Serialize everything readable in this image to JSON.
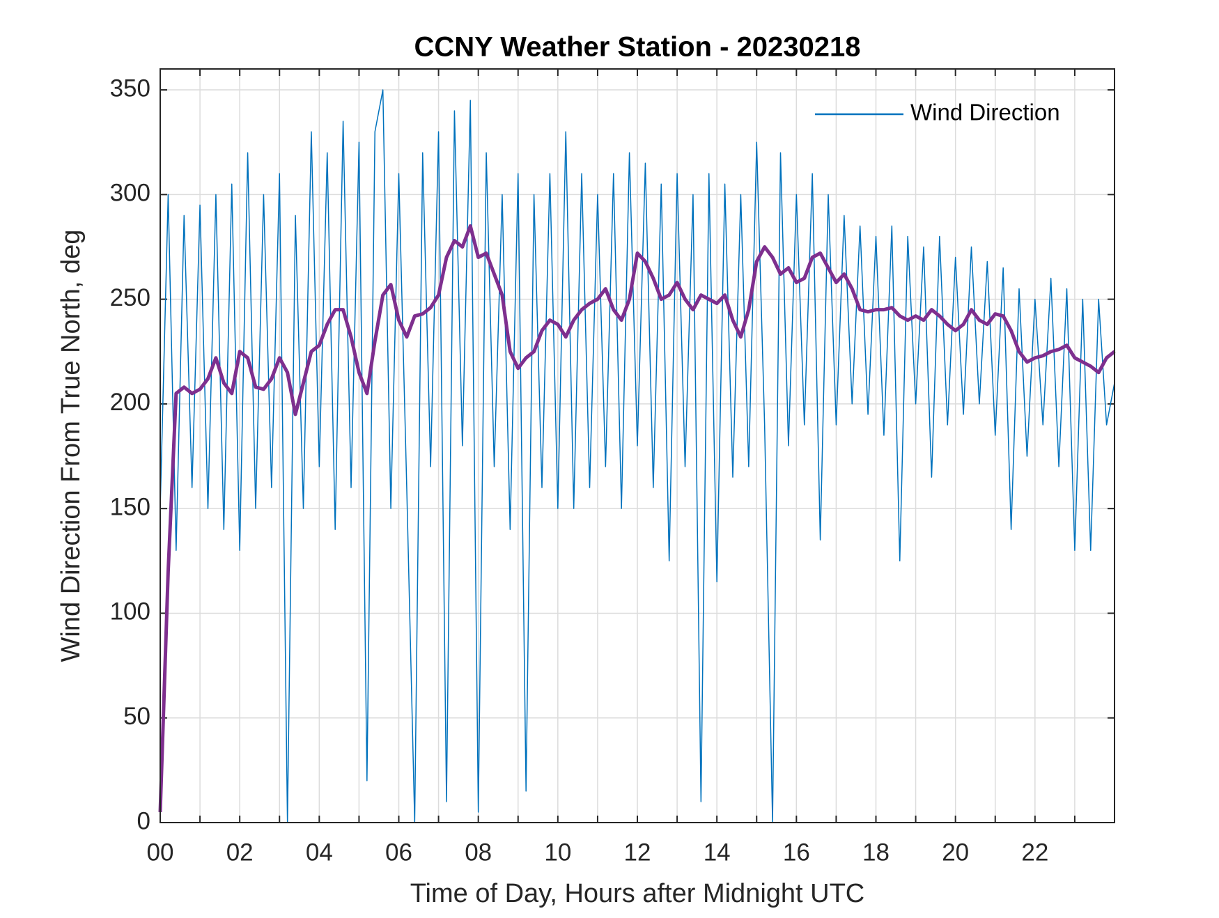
{
  "chart_data": {
    "type": "line",
    "title": "CCNY Weather Station - 20230218",
    "xlabel": "Time of Day, Hours after Midnight UTC",
    "ylabel": "Wind Direction From True North, deg",
    "x": [
      0,
      0.2,
      0.4,
      0.6,
      0.8,
      1,
      1.2,
      1.4,
      1.6,
      1.8,
      2,
      2.2,
      2.4,
      2.6,
      2.8,
      3,
      3.2,
      3.4,
      3.6,
      3.8,
      4,
      4.2,
      4.4,
      4.6,
      4.8,
      5,
      5.2,
      5.4,
      5.6,
      5.8,
      6,
      6.2,
      6.4,
      6.6,
      6.8,
      7,
      7.2,
      7.4,
      7.6,
      7.8,
      8,
      8.2,
      8.4,
      8.6,
      8.8,
      9,
      9.2,
      9.4,
      9.6,
      9.8,
      10,
      10.2,
      10.4,
      10.6,
      10.8,
      11,
      11.2,
      11.4,
      11.6,
      11.8,
      12,
      12.2,
      12.4,
      12.6,
      12.8,
      13,
      13.2,
      13.4,
      13.6,
      13.8,
      14,
      14.2,
      14.4,
      14.6,
      14.8,
      15,
      15.2,
      15.4,
      15.6,
      15.8,
      16,
      16.2,
      16.4,
      16.6,
      16.8,
      17,
      17.2,
      17.4,
      17.6,
      17.8,
      18,
      18.2,
      18.4,
      18.6,
      18.8,
      19,
      19.2,
      19.4,
      19.6,
      19.8,
      20,
      20.2,
      20.4,
      20.6,
      20.8,
      21,
      21.2,
      21.4,
      21.6,
      21.8,
      22,
      22.2,
      22.4,
      22.6,
      22.8,
      23,
      23.2,
      23.4,
      23.6,
      23.8,
      24
    ],
    "series": [
      {
        "name": "Wind Direction",
        "color": "#0072bd",
        "values": [
          150,
          300,
          130,
          290,
          160,
          295,
          150,
          300,
          140,
          305,
          130,
          320,
          150,
          300,
          160,
          310,
          0,
          290,
          150,
          330,
          170,
          320,
          140,
          335,
          160,
          325,
          20,
          330,
          350,
          150,
          310,
          160,
          0,
          320,
          170,
          330,
          10,
          340,
          180,
          345,
          5,
          320,
          170,
          300,
          140,
          310,
          15,
          300,
          160,
          310,
          150,
          330,
          150,
          310,
          160,
          300,
          170,
          310,
          150,
          320,
          180,
          315,
          160,
          305,
          125,
          310,
          170,
          300,
          10,
          310,
          115,
          305,
          165,
          300,
          170,
          325,
          190,
          0,
          320,
          180,
          300,
          190,
          310,
          135,
          300,
          190,
          290,
          200,
          285,
          195,
          280,
          185,
          285,
          125,
          280,
          200,
          275,
          165,
          280,
          190,
          270,
          195,
          275,
          200,
          268,
          185,
          265,
          140,
          255,
          175,
          250,
          190,
          260,
          170,
          255,
          130,
          250,
          130,
          250,
          190,
          210
        ]
      },
      {
        "color": "#7e2f8e",
        "values": [
          5,
          120,
          205,
          208,
          205,
          207,
          212,
          222,
          210,
          205,
          225,
          222,
          208,
          207,
          212,
          222,
          215,
          195,
          210,
          225,
          228,
          238,
          245,
          245,
          232,
          215,
          205,
          230,
          252,
          257,
          240,
          232,
          242,
          243,
          246,
          252,
          270,
          278,
          275,
          285,
          270,
          272,
          262,
          252,
          225,
          217,
          222,
          225,
          235,
          240,
          238,
          232,
          240,
          245,
          248,
          250,
          255,
          245,
          240,
          250,
          272,
          268,
          260,
          250,
          252,
          258,
          250,
          245,
          252,
          250,
          248,
          252,
          240,
          232,
          245,
          268,
          275,
          270,
          262,
          265,
          258,
          260,
          270,
          272,
          265,
          258,
          262,
          255,
          245,
          244,
          245,
          245,
          246,
          242,
          240,
          242,
          240,
          245,
          242,
          238,
          235,
          238,
          245,
          240,
          238,
          243,
          242,
          235,
          225,
          220,
          222,
          223,
          225,
          226,
          228,
          222,
          220,
          218,
          215,
          222,
          225
        ]
      }
    ],
    "xlim": [
      0,
      24
    ],
    "xticks": [
      {
        "value": 0,
        "label": "00"
      },
      {
        "value": 2,
        "label": "02"
      },
      {
        "value": 4,
        "label": "04"
      },
      {
        "value": 6,
        "label": "06"
      },
      {
        "value": 8,
        "label": "08"
      },
      {
        "value": 10,
        "label": "10"
      },
      {
        "value": 12,
        "label": "12"
      },
      {
        "value": 14,
        "label": "14"
      },
      {
        "value": 16,
        "label": "16"
      },
      {
        "value": 18,
        "label": "18"
      },
      {
        "value": 20,
        "label": "20"
      },
      {
        "value": 22,
        "label": "22"
      }
    ],
    "minor_xticks": [
      1,
      3,
      5,
      7,
      9,
      11,
      13,
      15,
      17,
      19,
      21,
      23
    ],
    "ylim": [
      0,
      360
    ],
    "yticks": [
      0,
      50,
      100,
      150,
      200,
      250,
      300,
      350
    ],
    "grid": true,
    "legend": "upper right"
  }
}
